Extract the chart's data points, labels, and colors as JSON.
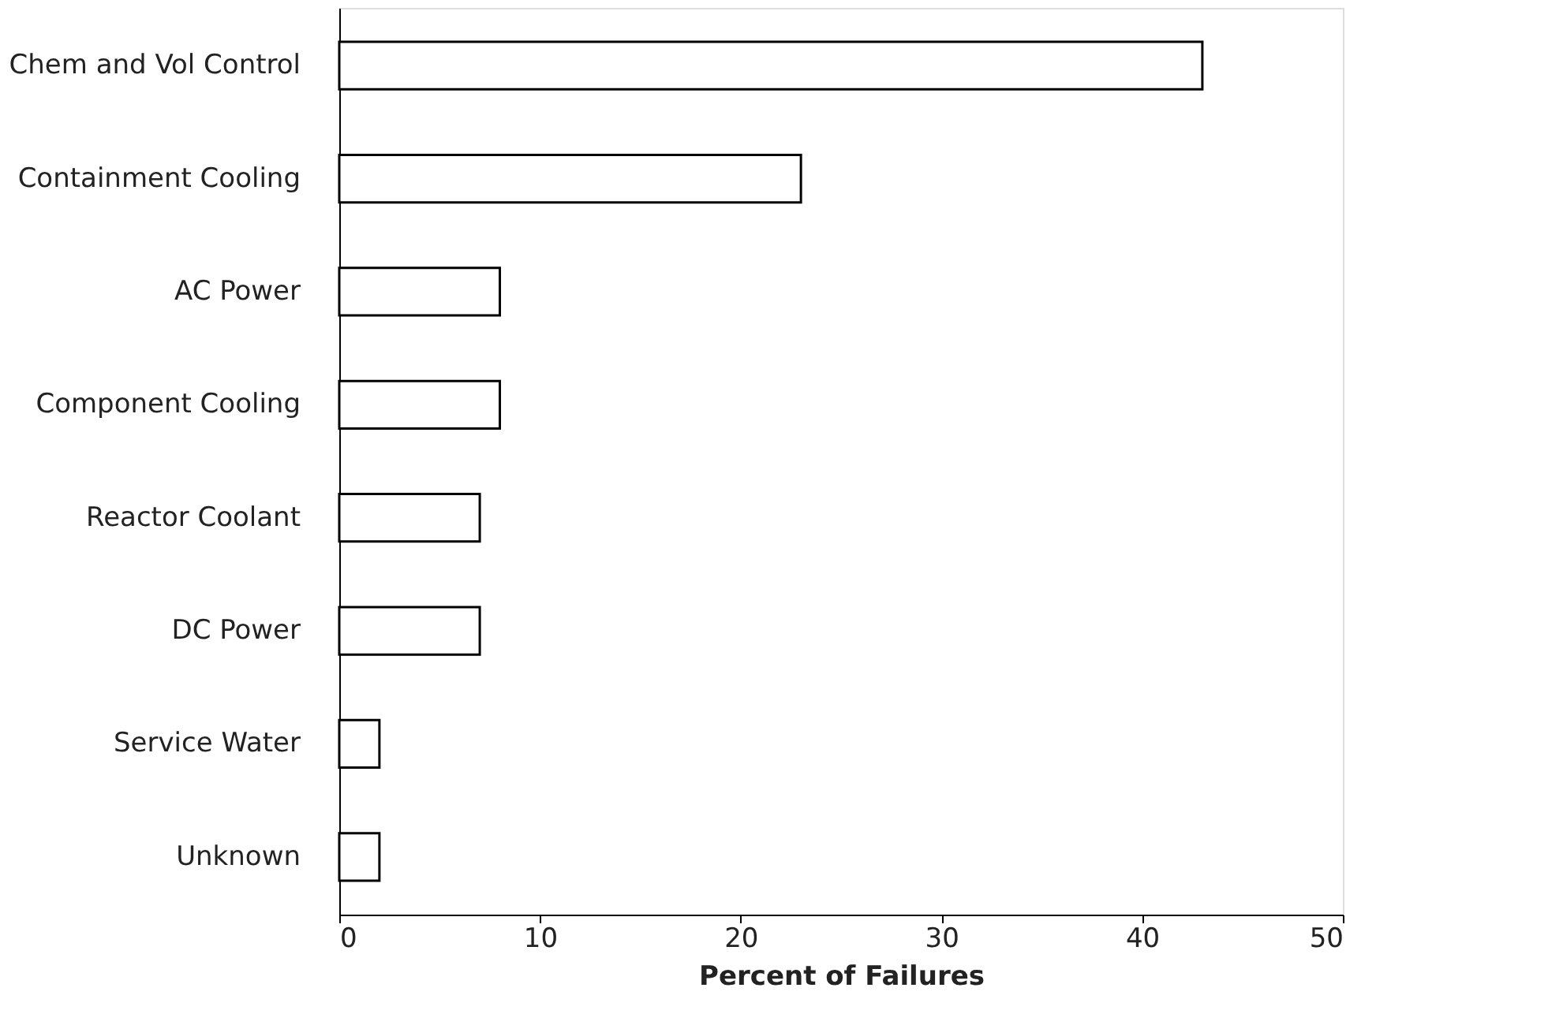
{
  "chart_data": {
    "type": "bar",
    "orientation": "horizontal",
    "xlabel": "Percent of Failures",
    "categories": [
      "Chem and Vol Control",
      "Containment Cooling",
      "AC Power",
      "Component Cooling",
      "Reactor Coolant",
      "DC Power",
      "Service Water",
      "Unknown"
    ],
    "values": [
      43,
      23,
      8,
      8,
      7,
      7,
      2,
      2
    ],
    "color": "#ffffff",
    "xlim": [
      0,
      50
    ],
    "xticks": [
      0,
      10,
      20,
      30,
      40,
      50
    ],
    "grid": false
  }
}
